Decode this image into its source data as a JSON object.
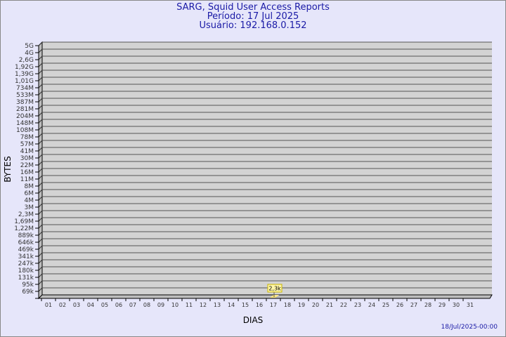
{
  "header": {
    "title": "SARG, Squid User Access Reports",
    "period": "Período: 17 Jul 2025",
    "user": "Usuário: 192.168.0.152"
  },
  "footer": {
    "generated": "18/Jul/2025-00:00"
  },
  "chart_data": {
    "type": "bar",
    "xlabel": "DIAS",
    "ylabel": "BYTES",
    "categories": [
      "01",
      "02",
      "03",
      "04",
      "05",
      "06",
      "07",
      "08",
      "09",
      "10",
      "11",
      "12",
      "13",
      "14",
      "15",
      "16",
      "17",
      "18",
      "19",
      "20",
      "21",
      "22",
      "23",
      "24",
      "25",
      "26",
      "27",
      "28",
      "29",
      "30",
      "31"
    ],
    "y_scale": "log",
    "y_ticks": [
      "5G",
      "4G",
      "2,6G",
      "1,92G",
      "1,39G",
      "1,01G",
      "734M",
      "533M",
      "387M",
      "281M",
      "204M",
      "148M",
      "108M",
      "78M",
      "57M",
      "41M",
      "30M",
      "22M",
      "16M",
      "11M",
      "8M",
      "6M",
      "4M",
      "3M",
      "2,3M",
      "1,69M",
      "1,22M",
      "889k",
      "646k",
      "469k",
      "341k",
      "247k",
      "180k",
      "131k",
      "95k",
      "69k"
    ],
    "bars": [
      {
        "category": "17",
        "value": 2300,
        "label": "2,3k"
      }
    ],
    "colors": {
      "background": "#e6e6fa",
      "plot": "#d3d3d3",
      "bar": "#ffe680",
      "text": "#1a1aa6"
    },
    "grid": true
  }
}
